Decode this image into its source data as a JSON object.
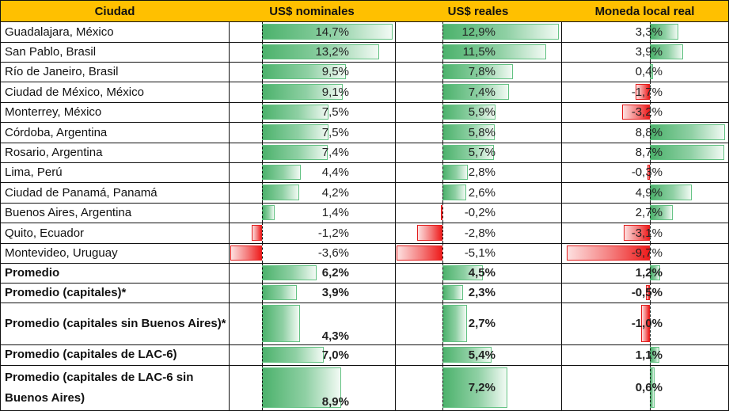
{
  "columns": [
    "Ciudad",
    "US$ nominales",
    "US$ reales",
    "Moneda local real"
  ],
  "colors": {
    "header_bg": "#ffc000",
    "positive_bar": "#4cb26c",
    "negative_bar": "#ee1c1c"
  },
  "rows": [
    {
      "city": "Guadalajara, México",
      "nominal": 14.7,
      "nominal_label": "14,7%",
      "real": 12.9,
      "real_label": "12,9%",
      "local": 3.3,
      "local_label": "3,3%",
      "bold": false
    },
    {
      "city": "San Pablo, Brasil",
      "nominal": 13.2,
      "nominal_label": "13,2%",
      "real": 11.5,
      "real_label": "11,5%",
      "local": 3.9,
      "local_label": "3,9%",
      "bold": false
    },
    {
      "city": "Río de Janeiro, Brasil",
      "nominal": 9.5,
      "nominal_label": "9,5%",
      "real": 7.8,
      "real_label": "7,8%",
      "local": 0.4,
      "local_label": "0,4%",
      "bold": false
    },
    {
      "city": "Ciudad de México, México",
      "nominal": 9.1,
      "nominal_label": "9,1%",
      "real": 7.4,
      "real_label": "7,4%",
      "local": -1.7,
      "local_label": "-1,7%",
      "bold": false
    },
    {
      "city": "Monterrey, México",
      "nominal": 7.5,
      "nominal_label": "7,5%",
      "real": 5.9,
      "real_label": "5,9%",
      "local": -3.2,
      "local_label": "-3,2%",
      "bold": false
    },
    {
      "city": "Córdoba, Argentina",
      "nominal": 7.5,
      "nominal_label": "7,5%",
      "real": 5.8,
      "real_label": "5,8%",
      "local": 8.8,
      "local_label": "8,8%",
      "bold": false
    },
    {
      "city": "Rosario, Argentina",
      "nominal": 7.4,
      "nominal_label": "7,4%",
      "real": 5.7,
      "real_label": "5,7%",
      "local": 8.7,
      "local_label": "8,7%",
      "bold": false
    },
    {
      "city": "Lima, Perú",
      "nominal": 4.4,
      "nominal_label": "4,4%",
      "real": 2.8,
      "real_label": "2,8%",
      "local": -0.3,
      "local_label": "-0,3%",
      "bold": false
    },
    {
      "city": "Ciudad de Panamá, Panamá",
      "nominal": 4.2,
      "nominal_label": "4,2%",
      "real": 2.6,
      "real_label": "2,6%",
      "local": 4.9,
      "local_label": "4,9%",
      "bold": false
    },
    {
      "city": "Buenos Aires, Argentina",
      "nominal": 1.4,
      "nominal_label": "1,4%",
      "real": -0.2,
      "real_label": "-0,2%",
      "local": 2.7,
      "local_label": "2,7%",
      "bold": false
    },
    {
      "city": "Quito, Ecuador",
      "nominal": -1.2,
      "nominal_label": "-1,2%",
      "real": -2.8,
      "real_label": "-2,8%",
      "local": -3.1,
      "local_label": "-3,1%",
      "bold": false
    },
    {
      "city": "Montevideo, Uruguay",
      "nominal": -3.6,
      "nominal_label": "-3,6%",
      "real": -5.1,
      "real_label": "-5,1%",
      "local": -9.7,
      "local_label": "-9,7%",
      "bold": false
    },
    {
      "city": "Promedio",
      "nominal": 6.2,
      "nominal_label": "6,2%",
      "real": 4.5,
      "real_label": "4,5%",
      "local": 1.2,
      "local_label": "1,2%",
      "bold": true
    },
    {
      "city": "Promedio (capitales)*",
      "nominal": 3.9,
      "nominal_label": "3,9%",
      "real": 2.3,
      "real_label": "2,3%",
      "local": -0.5,
      "local_label": "-0,5%",
      "bold": true
    },
    {
      "city": "Promedio (capitales sin Buenos Aires)*",
      "nominal": 4.3,
      "nominal_label": "4,3%",
      "real": 2.7,
      "real_label": "2,7%",
      "local": -1.0,
      "local_label": "-1,0%",
      "bold": true
    },
    {
      "city": "Promedio (capitales de LAC-6)",
      "nominal": 7.0,
      "nominal_label": "7,0%",
      "real": 5.4,
      "real_label": "5,4%",
      "local": 1.1,
      "local_label": "1,1%",
      "bold": true
    },
    {
      "city": "Promedio (capitales de LAC-6 sin Buenos Aires)",
      "nominal": 8.9,
      "nominal_label": "8,9%",
      "real": 7.2,
      "real_label": "7,2%",
      "local": 0.6,
      "local_label": "0,6%",
      "bold": true
    }
  ]
}
